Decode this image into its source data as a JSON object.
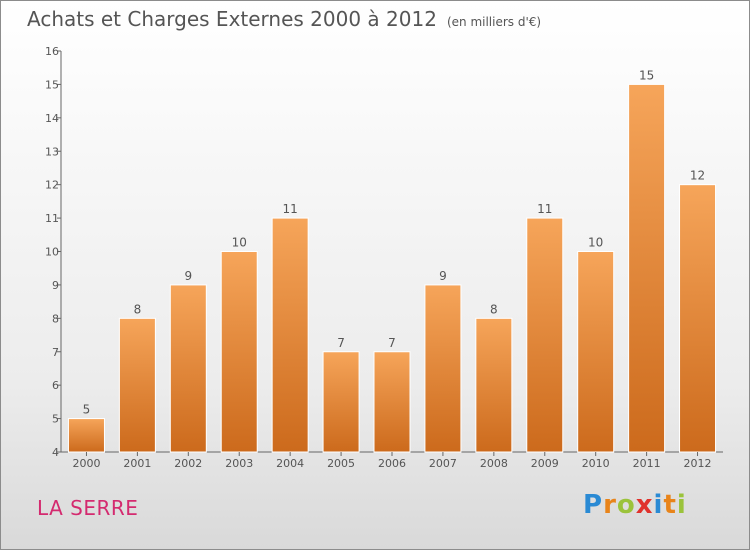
{
  "header": {
    "title": "Achats et Charges Externes 2000 à 2012",
    "unit": "(en milliers d'€)"
  },
  "footer": {
    "commune": "LA SERRE",
    "logo_letters": [
      "P",
      "r",
      "o",
      "x",
      "i",
      "t",
      "i"
    ],
    "logo_colors": [
      "#2a8ad4",
      "#e8841a",
      "#9bc33b",
      "#e0322c",
      "#2a8ad4",
      "#e8841a",
      "#9bc33b"
    ]
  },
  "colors": {
    "bar_top": "#f6a55a",
    "bar_bottom": "#cc6a1c",
    "axis": "#666666",
    "text": "#555555"
  },
  "chart_data": {
    "type": "bar",
    "categories": [
      "2000",
      "2001",
      "2002",
      "2003",
      "2004",
      "2005",
      "2006",
      "2007",
      "2008",
      "2009",
      "2010",
      "2011",
      "2012"
    ],
    "values": [
      5,
      8,
      9,
      10,
      11,
      7,
      7,
      9,
      8,
      11,
      10,
      15,
      12
    ],
    "title": "Achats et Charges Externes 2000 à 2012",
    "xlabel": "",
    "ylabel": "",
    "ylim": [
      4,
      16
    ],
    "yticks": [
      4,
      5,
      6,
      7,
      8,
      9,
      10,
      11,
      12,
      13,
      14,
      15,
      16
    ],
    "grid": false,
    "data_labels": true
  }
}
